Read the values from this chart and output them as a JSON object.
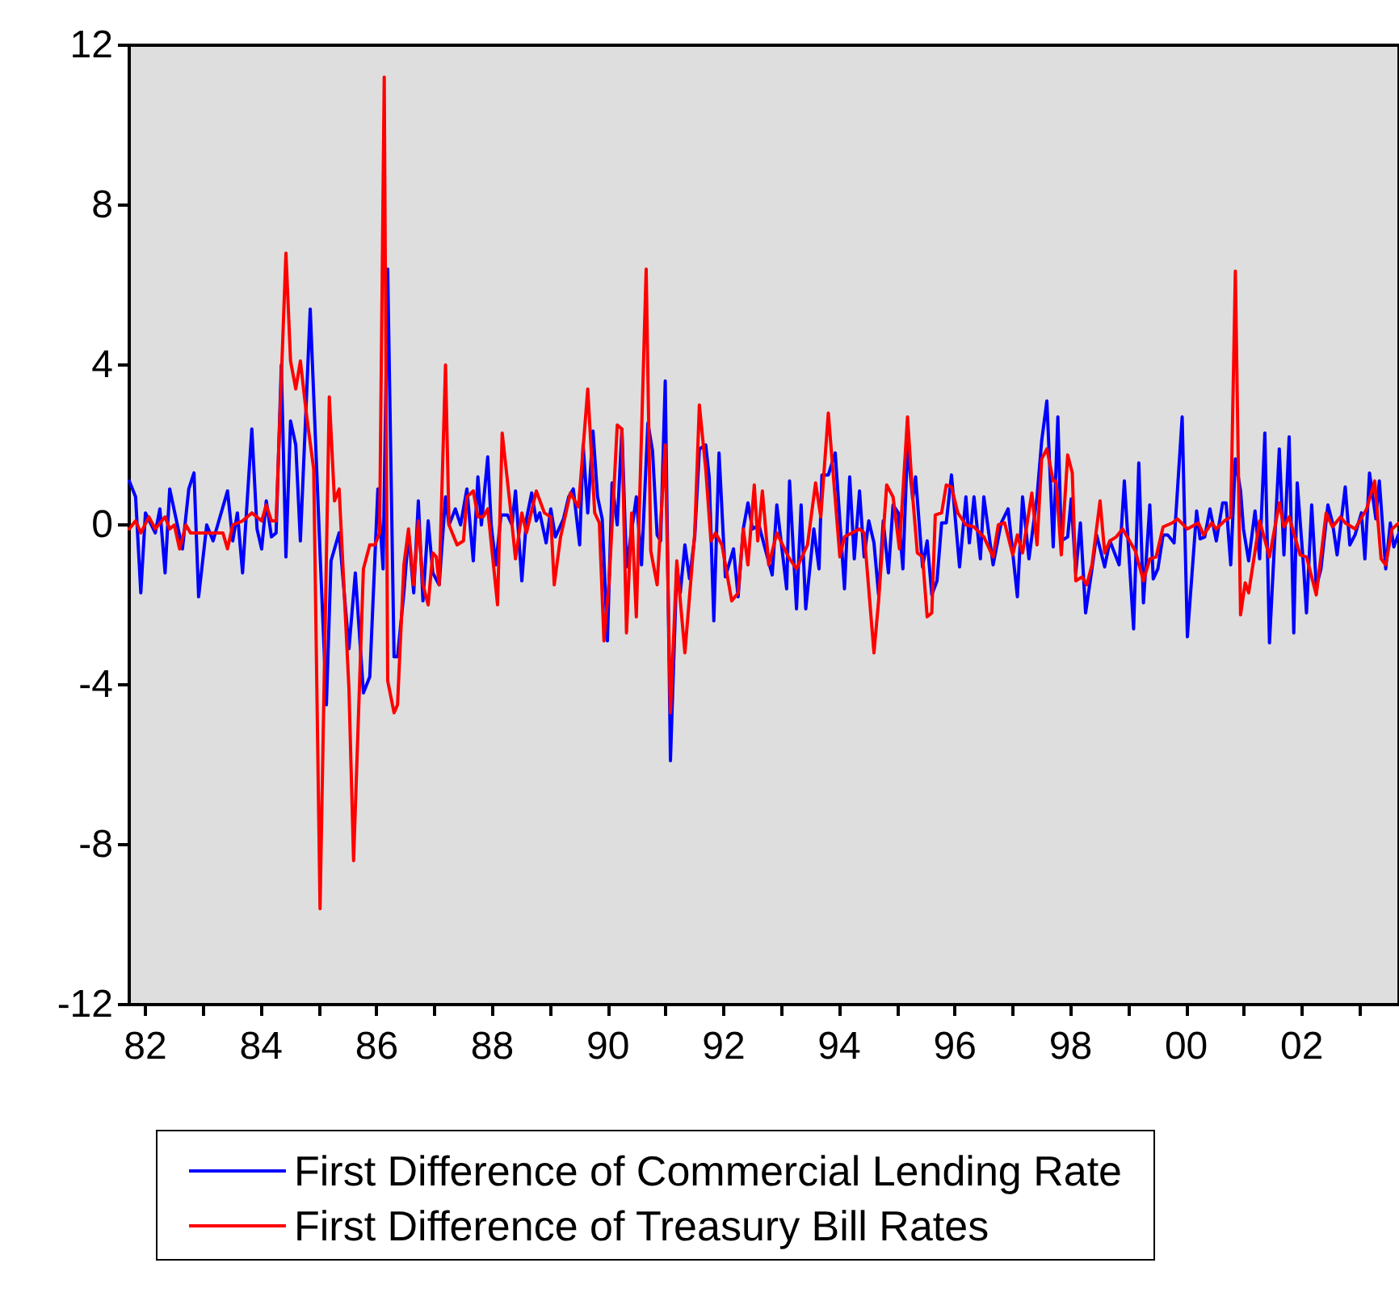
{
  "chart_data": {
    "type": "line",
    "legend": "bottom",
    "xlim": [
      1981.72,
      2003.68
    ],
    "ylim": [
      -12,
      12
    ],
    "yticks": [
      -12,
      -8,
      -4,
      0,
      4,
      8,
      12
    ],
    "xticks": [
      {
        "value": 1982,
        "label": "82"
      },
      {
        "value": 1983,
        "label": null
      },
      {
        "value": 1984,
        "label": "84"
      },
      {
        "value": 1985,
        "label": null
      },
      {
        "value": 1986,
        "label": "86"
      },
      {
        "value": 1987,
        "label": null
      },
      {
        "value": 1988,
        "label": "88"
      },
      {
        "value": 1989,
        "label": null
      },
      {
        "value": 1990,
        "label": "90"
      },
      {
        "value": 1991,
        "label": null
      },
      {
        "value": 1992,
        "label": "92"
      },
      {
        "value": 1993,
        "label": null
      },
      {
        "value": 1994,
        "label": "94"
      },
      {
        "value": 1995,
        "label": null
      },
      {
        "value": 1996,
        "label": "96"
      },
      {
        "value": 1997,
        "label": null
      },
      {
        "value": 1998,
        "label": "98"
      },
      {
        "value": 1999,
        "label": null
      },
      {
        "value": 2000,
        "label": "00"
      },
      {
        "value": 2001,
        "label": null
      },
      {
        "value": 2002,
        "label": "02"
      },
      {
        "value": 2003,
        "label": null
      }
    ],
    "series": [
      {
        "name": "First Difference of Commercial Lending Rate",
        "color": "#0000ff",
        "x": [
          1981.72,
          1981.83,
          1981.92,
          1982.0,
          1982.17,
          1982.25,
          1982.34,
          1982.42,
          1982.64,
          1982.75,
          1982.84,
          1982.92,
          1983.06,
          1983.17,
          1983.42,
          1983.51,
          1983.59,
          1983.68,
          1983.84,
          1983.93,
          1984.01,
          1984.09,
          1984.18,
          1984.26,
          1984.35,
          1984.43,
          1984.51,
          1984.6,
          1984.68,
          1984.85,
          1985.02,
          1985.13,
          1985.21,
          1985.35,
          1985.52,
          1985.63,
          1985.77,
          1985.88,
          1986.02,
          1986.11,
          1986.19,
          1986.3,
          1986.36,
          1986.47,
          1986.55,
          1986.64,
          1986.72,
          1986.8,
          1986.89,
          1986.97,
          1987.08,
          1987.19,
          1987.25,
          1987.36,
          1987.45,
          1987.56,
          1987.67,
          1987.75,
          1987.81,
          1987.92,
          1987.98,
          1988.06,
          1988.15,
          1988.26,
          1988.34,
          1988.4,
          1988.51,
          1988.59,
          1988.68,
          1988.76,
          1988.82,
          1988.93,
          1989.01,
          1989.09,
          1989.23,
          1989.32,
          1989.4,
          1989.51,
          1989.57,
          1989.65,
          1989.74,
          1989.82,
          1989.9,
          1989.99,
          1990.07,
          1990.16,
          1990.24,
          1990.32,
          1990.49,
          1990.58,
          1990.69,
          1990.77,
          1990.85,
          1990.91,
          1990.99,
          1991.08,
          1991.19,
          1991.25,
          1991.33,
          1991.41,
          1991.5,
          1991.58,
          1991.69,
          1991.75,
          1991.83,
          1991.92,
          1992.03,
          1992.17,
          1992.25,
          1992.34,
          1992.42,
          1992.5,
          1992.61,
          1992.7,
          1992.84,
          1992.92,
          1993.09,
          1993.14,
          1993.26,
          1993.34,
          1993.42,
          1993.56,
          1993.65,
          1993.7,
          1993.81,
          1993.93,
          1994.09,
          1994.18,
          1994.26,
          1994.35,
          1994.43,
          1994.51,
          1994.6,
          1994.68,
          1994.76,
          1994.85,
          1994.93,
          1995.02,
          1995.1,
          1995.18,
          1995.27,
          1995.32,
          1995.44,
          1995.52,
          1995.6,
          1995.69,
          1995.77,
          1995.85,
          1995.94,
          1996.08,
          1996.19,
          1996.25,
          1996.33,
          1996.44,
          1996.5,
          1996.66,
          1996.8,
          1996.92,
          1997.08,
          1997.17,
          1997.28,
          1997.42,
          1997.5,
          1997.59,
          1997.7,
          1997.78,
          1997.84,
          1997.95,
          1998.01,
          1998.09,
          1998.17,
          1998.26,
          1998.37,
          1998.45,
          1998.59,
          1998.68,
          1998.84,
          1998.93,
          1999.09,
          1999.18,
          1999.26,
          1999.37,
          1999.43,
          1999.51,
          1999.6,
          1999.68,
          1999.79,
          1999.93,
          2000.02,
          2000.18,
          2000.24,
          2000.32,
          2000.41,
          2000.52,
          2000.63,
          2000.69,
          2000.77,
          2000.85,
          2000.94,
          2000.99,
          2001.08,
          2001.19,
          2001.27,
          2001.36,
          2001.44,
          2001.61,
          2001.69,
          2001.78,
          2001.86,
          2001.92,
          2002.03,
          2002.08,
          2002.17,
          2002.25,
          2002.33,
          2002.45,
          2002.53,
          2002.61,
          2002.75,
          2002.83,
          2002.92,
          2003.03,
          2003.09,
          2003.17,
          2003.28,
          2003.34,
          2003.45,
          2003.53,
          2003.59,
          2003.68
        ],
        "values": [
          1.1,
          0.7,
          -1.7,
          0.3,
          -0.2,
          0.4,
          -1.2,
          0.9,
          -0.6,
          0.9,
          1.3,
          -1.8,
          0,
          -0.4,
          0.85,
          -0.4,
          0.3,
          -1.2,
          2.4,
          -0.1,
          -0.6,
          0.6,
          -0.3,
          -0.2,
          4.0,
          -0.8,
          2.6,
          2.0,
          -0.4,
          5.4,
          -0.7,
          -4.5,
          -0.9,
          -0.2,
          -3.1,
          -1.2,
          -4.2,
          -3.8,
          0.9,
          -1.1,
          6.4,
          -3.3,
          -3.3,
          -1.7,
          -0.2,
          -1.7,
          0.6,
          -1.9,
          0.1,
          -1.2,
          -1.5,
          0.7,
          0,
          0.4,
          0,
          0.9,
          -0.9,
          1.2,
          0,
          1.7,
          0,
          -1.0,
          0.25,
          0.25,
          0,
          0.85,
          -1.4,
          0.15,
          0.8,
          0.1,
          0.3,
          -0.45,
          0.4,
          -0.3,
          0.15,
          0.7,
          0.9,
          -0.5,
          2.0,
          0.3,
          2.35,
          0.7,
          0.15,
          -2.9,
          1.05,
          0,
          2.4,
          -1.05,
          0.7,
          -1.0,
          2.55,
          1.85,
          -0.25,
          -0.4,
          3.6,
          -5.9,
          -1.05,
          -1.7,
          -0.5,
          -1.35,
          -0.3,
          1.9,
          2.0,
          1.2,
          -2.4,
          1.8,
          -1.3,
          -0.6,
          -1.8,
          -0.1,
          0.55,
          -0.1,
          0,
          -0.5,
          -1.25,
          0.5,
          -1.6,
          1.1,
          -2.1,
          0.5,
          -2.1,
          -0.1,
          -1.1,
          1.25,
          1.25,
          1.8,
          -1.6,
          1.2,
          -0.85,
          0.85,
          -0.8,
          0.1,
          -0.45,
          -1.75,
          0.1,
          -1.2,
          0.5,
          0.3,
          -1.1,
          2.0,
          0.65,
          1.2,
          -1.05,
          -0.4,
          -1.75,
          -1.4,
          0.05,
          0.05,
          1.25,
          -1.05,
          0.7,
          -0.45,
          0.7,
          -0.85,
          0.7,
          -1.0,
          0.05,
          0.4,
          -1.8,
          0.7,
          -0.85,
          0.7,
          2.1,
          3.1,
          -0.55,
          2.7,
          -0.4,
          -0.3,
          0.65,
          -1.2,
          0.05,
          -2.2,
          -1.1,
          -0.25,
          -1.05,
          -0.4,
          -1.0,
          1.1,
          -2.6,
          1.55,
          -1.95,
          0.5,
          -1.35,
          -1.1,
          -0.25,
          -0.25,
          -0.45,
          2.7,
          -2.8,
          0.35,
          -0.35,
          -0.3,
          0.4,
          -0.4,
          0.55,
          0.55,
          -1.0,
          1.65,
          0.85,
          -0.1,
          -0.9,
          0.35,
          -0.85,
          2.3,
          -2.95,
          1.9,
          -0.75,
          2.2,
          -2.7,
          1.05,
          -1.05,
          -2.2,
          0.5,
          -1.55,
          -1.1,
          0.5,
          0.05,
          -0.75,
          0.95,
          -0.5,
          -0.25,
          0.3,
          -0.85,
          1.3,
          0.15,
          1.1,
          -1.1,
          0.05,
          -0.55,
          -0.2
        ]
      },
      {
        "name": "First Difference of Treasury Bill Rates",
        "color": "#ff0000",
        "x": [
          1981.72,
          1981.83,
          1981.92,
          1982.06,
          1982.17,
          1982.34,
          1982.42,
          1982.5,
          1982.59,
          1982.7,
          1982.78,
          1983.34,
          1983.42,
          1983.51,
          1983.68,
          1983.84,
          1984.01,
          1984.09,
          1984.18,
          1984.26,
          1984.43,
          1984.51,
          1984.6,
          1984.68,
          1984.79,
          1984.91,
          1985.02,
          1985.18,
          1985.27,
          1985.35,
          1985.52,
          1985.6,
          1985.77,
          1985.88,
          1985.97,
          1986.05,
          1986.13,
          1986.19,
          1986.3,
          1986.36,
          1986.47,
          1986.55,
          1986.64,
          1986.72,
          1986.8,
          1986.89,
          1986.97,
          1987.03,
          1987.08,
          1987.19,
          1987.25,
          1987.39,
          1987.5,
          1987.56,
          1987.67,
          1987.75,
          1987.84,
          1987.92,
          1988.09,
          1988.17,
          1988.31,
          1988.4,
          1988.51,
          1988.59,
          1988.76,
          1988.9,
          1989.01,
          1989.07,
          1989.18,
          1989.35,
          1989.49,
          1989.65,
          1989.77,
          1989.85,
          1989.93,
          1990.02,
          1990.16,
          1990.24,
          1990.32,
          1990.41,
          1990.49,
          1990.66,
          1990.74,
          1990.85,
          1990.99,
          1991.08,
          1991.19,
          1991.33,
          1991.5,
          1991.58,
          1991.69,
          1991.78,
          1991.86,
          1991.97,
          1992.14,
          1992.25,
          1992.34,
          1992.42,
          1992.53,
          1992.59,
          1992.67,
          1992.78,
          1992.92,
          1993.12,
          1993.26,
          1993.45,
          1993.59,
          1993.68,
          1993.81,
          1994.01,
          1994.09,
          1994.35,
          1994.43,
          1994.6,
          1994.68,
          1994.82,
          1994.93,
          1995.04,
          1995.18,
          1995.27,
          1995.35,
          1995.44,
          1995.52,
          1995.6,
          1995.66,
          1995.77,
          1995.85,
          1995.94,
          1996.05,
          1996.19,
          1996.33,
          1996.5,
          1996.66,
          1996.75,
          1996.86,
          1997.0,
          1997.08,
          1997.17,
          1997.33,
          1997.42,
          1997.5,
          1997.59,
          1997.7,
          1997.75,
          1997.84,
          1997.95,
          1998.03,
          1998.09,
          1998.2,
          1998.28,
          1998.37,
          1998.51,
          1998.59,
          1998.68,
          1998.79,
          1998.9,
          1999.12,
          1999.26,
          1999.37,
          1999.48,
          1999.6,
          1999.76,
          1999.85,
          2000.02,
          2000.21,
          2000.3,
          2000.44,
          2000.52,
          2000.66,
          2000.77,
          2000.85,
          2000.94,
          2001.02,
          2001.08,
          2001.27,
          2001.44,
          2001.61,
          2001.69,
          2001.78,
          2001.97,
          2002.08,
          2002.25,
          2002.42,
          2002.53,
          2002.67,
          2002.75,
          2002.92,
          2003.12,
          2003.26,
          2003.37,
          2003.45,
          2003.56,
          2003.68
        ],
        "values": [
          -0.1,
          0.1,
          -0.2,
          0.2,
          -0.1,
          0.2,
          -0.1,
          0,
          -0.6,
          0,
          -0.2,
          -0.2,
          -0.6,
          0,
          0.1,
          0.3,
          0.1,
          0.5,
          0.1,
          0.1,
          6.8,
          4.1,
          3.4,
          4.1,
          2.7,
          1.4,
          -9.6,
          3.2,
          0.6,
          0.9,
          -4.1,
          -8.4,
          -1.1,
          -0.5,
          -0.5,
          -0.2,
          11.2,
          -3.9,
          -4.7,
          -4.5,
          -1.0,
          -0.1,
          -1.5,
          0.1,
          -1.5,
          -2.0,
          -0.7,
          -0.8,
          -1.5,
          4.0,
          0,
          -0.5,
          -0.4,
          0.7,
          0.85,
          0.2,
          0.2,
          0.4,
          -2.0,
          2.3,
          0.45,
          -0.85,
          0.3,
          -0.2,
          0.85,
          0.3,
          0.2,
          -1.5,
          -0.3,
          0.8,
          0.45,
          3.4,
          0.3,
          0.05,
          -2.9,
          -1.4,
          2.5,
          2.4,
          -2.7,
          0.3,
          -2.3,
          6.4,
          -0.65,
          -1.5,
          2.0,
          -4.7,
          -0.9,
          -3.2,
          -0.2,
          3.0,
          1.4,
          -0.4,
          -0.2,
          -0.5,
          -1.9,
          -1.7,
          -0.1,
          -1.0,
          1.0,
          -0.4,
          0.85,
          -1.0,
          -0.2,
          -0.8,
          -1.1,
          -0.5,
          1.05,
          0.2,
          2.8,
          -0.8,
          -0.3,
          -0.1,
          -0.2,
          -3.2,
          -1.9,
          1.0,
          0.7,
          -0.6,
          2.7,
          0.7,
          -0.7,
          -0.8,
          -2.3,
          -2.2,
          0.25,
          0.3,
          1.0,
          0.95,
          0.3,
          0,
          -0.05,
          -0.3,
          -0.8,
          0,
          0.05,
          -0.75,
          -0.25,
          -0.7,
          0.8,
          -0.5,
          1.65,
          1.9,
          1.1,
          1.1,
          -0.75,
          1.75,
          1.3,
          -1.4,
          -1.3,
          -1.5,
          -1.0,
          0.6,
          -0.7,
          -0.4,
          -0.3,
          -0.1,
          -0.65,
          -1.4,
          -0.85,
          -0.8,
          -0.05,
          0.05,
          0.15,
          -0.1,
          0.05,
          -0.25,
          0.05,
          -0.1,
          0.1,
          0.2,
          6.35,
          -2.25,
          -1.45,
          -1.7,
          0.1,
          -0.8,
          0.55,
          -0.05,
          0.2,
          -0.75,
          -0.8,
          -1.75,
          0.3,
          -0.05,
          0.2,
          0.05,
          -0.1,
          0.4,
          1.1,
          -0.85,
          -1.0,
          -0.1,
          0.05
        ]
      }
    ]
  }
}
